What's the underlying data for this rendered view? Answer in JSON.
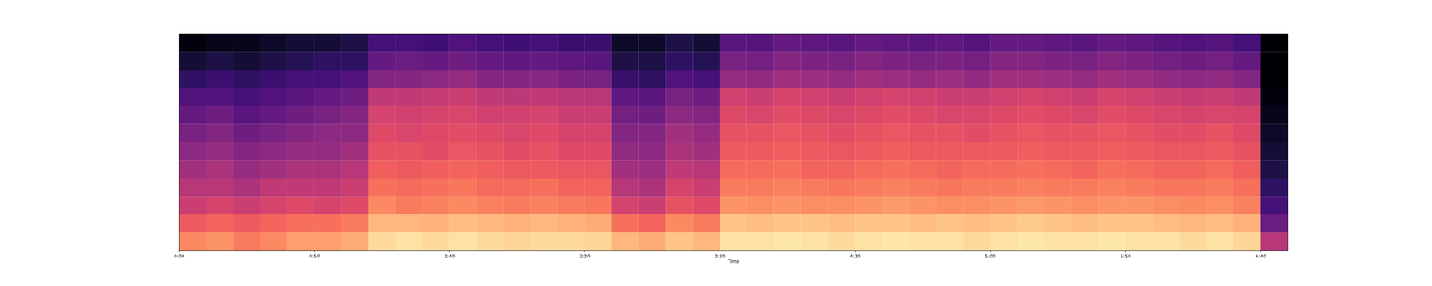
{
  "chart_data": {
    "type": "heatmap",
    "x_label": "Time",
    "xlim": [
      0,
      410
    ],
    "xticks": [
      {
        "value": 0,
        "label": "0:00"
      },
      {
        "value": 50,
        "label": "0:50"
      },
      {
        "value": 100,
        "label": "1:40"
      },
      {
        "value": 150,
        "label": "2:30"
      },
      {
        "value": 200,
        "label": "3:20"
      },
      {
        "value": 250,
        "label": "4:10"
      },
      {
        "value": 300,
        "label": "5:00"
      },
      {
        "value": 350,
        "label": "5:50"
      },
      {
        "value": 400,
        "label": "6:40"
      }
    ],
    "tick_labels": "x",
    "color": "magma",
    "color_range": [
      -80,
      0
    ],
    "time_bins": [
      0,
      10,
      20,
      30,
      40,
      50,
      60,
      70,
      80,
      90,
      100,
      110,
      120,
      130,
      140,
      150,
      160,
      170,
      180,
      190,
      200,
      210,
      220,
      230,
      240,
      250,
      260,
      270,
      280,
      290,
      300,
      310,
      320,
      330,
      340,
      350,
      360,
      370,
      380,
      390,
      400,
      410
    ],
    "cells": [
      [
        -20,
        -28,
        -36,
        -40,
        -44,
        -48,
        -52,
        -56,
        -60,
        -66,
        -72,
        -78
      ],
      [
        -18,
        -26,
        -34,
        -40,
        -42,
        -46,
        -50,
        -54,
        -60,
        -64,
        -70,
        -76
      ],
      [
        -22,
        -28,
        -36,
        -42,
        -46,
        -50,
        -54,
        -58,
        -62,
        -66,
        -72,
        -76
      ],
      [
        -20,
        -26,
        -34,
        -38,
        -44,
        -48,
        -52,
        -56,
        -60,
        -64,
        -70,
        -74
      ],
      [
        -16,
        -24,
        -32,
        -38,
        -42,
        -46,
        -50,
        -54,
        -58,
        -62,
        -68,
        -72
      ],
      [
        -16,
        -24,
        -34,
        -38,
        -42,
        -46,
        -48,
        -52,
        -56,
        -62,
        -66,
        -72
      ],
      [
        -14,
        -22,
        -32,
        -36,
        -40,
        -44,
        -48,
        -50,
        -54,
        -60,
        -66,
        -70
      ],
      [
        -6,
        -12,
        -20,
        -24,
        -27,
        -30,
        -32,
        -34,
        -38,
        -50,
        -56,
        -62
      ],
      [
        -5,
        -12,
        -22,
        -25,
        -28,
        -30,
        -33,
        -35,
        -38,
        -50,
        -55,
        -62
      ],
      [
        -6,
        -13,
        -21,
        -24,
        -27,
        -31,
        -32,
        -34,
        -37,
        -48,
        -56,
        -63
      ],
      [
        -5,
        -11,
        -20,
        -23,
        -26,
        -29,
        -31,
        -33,
        -36,
        -46,
        -54,
        -60
      ],
      [
        -6,
        -12,
        -21,
        -25,
        -27,
        -30,
        -32,
        -35,
        -38,
        -50,
        -56,
        -62
      ],
      [
        -7,
        -13,
        -22,
        -25,
        -28,
        -31,
        -33,
        -35,
        -39,
        -50,
        -57,
        -63
      ],
      [
        -6,
        -12,
        -21,
        -24,
        -28,
        -30,
        -32,
        -34,
        -38,
        -49,
        -56,
        -62
      ],
      [
        -6,
        -13,
        -22,
        -26,
        -29,
        -32,
        -34,
        -36,
        -40,
        -51,
        -57,
        -64
      ],
      [
        -7,
        -14,
        -23,
        -26,
        -29,
        -32,
        -34,
        -36,
        -40,
        -52,
        -58,
        -64
      ],
      [
        -12,
        -24,
        -34,
        -40,
        -44,
        -47,
        -50,
        -53,
        -57,
        -65,
        -70,
        -74
      ],
      [
        -14,
        -26,
        -36,
        -42,
        -45,
        -48,
        -50,
        -54,
        -58,
        -66,
        -70,
        -74
      ],
      [
        -10,
        -20,
        -30,
        -34,
        -38,
        -42,
        -44,
        -48,
        -52,
        -60,
        -66,
        -70
      ],
      [
        -12,
        -22,
        -32,
        -36,
        -40,
        -44,
        -46,
        -50,
        -54,
        -62,
        -68,
        -72
      ],
      [
        -5,
        -10,
        -18,
        -22,
        -25,
        -28,
        -30,
        -32,
        -35,
        -46,
        -52,
        -58
      ],
      [
        -5,
        -11,
        -19,
        -22,
        -25,
        -28,
        -30,
        -33,
        -36,
        -47,
        -53,
        -59
      ],
      [
        -4,
        -10,
        -18,
        -21,
        -24,
        -27,
        -29,
        -31,
        -34,
        -44,
        -50,
        -56
      ],
      [
        -5,
        -10,
        -19,
        -22,
        -26,
        -28,
        -30,
        -32,
        -35,
        -45,
        -51,
        -57
      ],
      [
        -6,
        -11,
        -19,
        -23,
        -26,
        -29,
        -31,
        -33,
        -36,
        -46,
        -52,
        -58
      ],
      [
        -5,
        -10,
        -18,
        -22,
        -25,
        -28,
        -30,
        -32,
        -35,
        -44,
        -50,
        -56
      ],
      [
        -4,
        -10,
        -17,
        -21,
        -24,
        -27,
        -29,
        -31,
        -34,
        -45,
        -51,
        -57
      ],
      [
        -5,
        -11,
        -18,
        -22,
        -25,
        -28,
        -30,
        -32,
        -35,
        -46,
        -52,
        -58
      ],
      [
        -5,
        -10,
        -19,
        -23,
        -26,
        -28,
        -30,
        -33,
        -36,
        -45,
        -51,
        -57
      ],
      [
        -6,
        -11,
        -19,
        -22,
        -25,
        -28,
        -31,
        -33,
        -36,
        -47,
        -53,
        -59
      ],
      [
        -5,
        -10,
        -18,
        -22,
        -25,
        -28,
        -30,
        -32,
        -35,
        -44,
        -50,
        -56
      ],
      [
        -4,
        -9,
        -17,
        -21,
        -24,
        -27,
        -29,
        -31,
        -34,
        -44,
        -50,
        -56
      ],
      [
        -5,
        -10,
        -18,
        -22,
        -25,
        -28,
        -30,
        -32,
        -35,
        -45,
        -51,
        -57
      ],
      [
        -5,
        -11,
        -19,
        -22,
        -26,
        -28,
        -30,
        -33,
        -36,
        -46,
        -52,
        -58
      ],
      [
        -4,
        -10,
        -18,
        -21,
        -24,
        -27,
        -29,
        -31,
        -34,
        -44,
        -50,
        -56
      ],
      [
        -5,
        -10,
        -18,
        -22,
        -25,
        -28,
        -30,
        -32,
        -35,
        -45,
        -51,
        -57
      ],
      [
        -5,
        -11,
        -19,
        -23,
        -26,
        -29,
        -31,
        -33,
        -36,
        -47,
        -53,
        -59
      ],
      [
        -6,
        -12,
        -20,
        -23,
        -26,
        -29,
        -31,
        -34,
        -37,
        -48,
        -54,
        -60
      ],
      [
        -5,
        -11,
        -19,
        -22,
        -25,
        -28,
        -30,
        -33,
        -36,
        -47,
        -53,
        -59
      ],
      [
        -7,
        -13,
        -21,
        -24,
        -27,
        -30,
        -32,
        -34,
        -38,
        -50,
        -56,
        -62
      ],
      [
        -40,
        -55,
        -62,
        -66,
        -70,
        -72,
        -74,
        -76,
        -78,
        -80,
        -80,
        -80
      ]
    ]
  }
}
